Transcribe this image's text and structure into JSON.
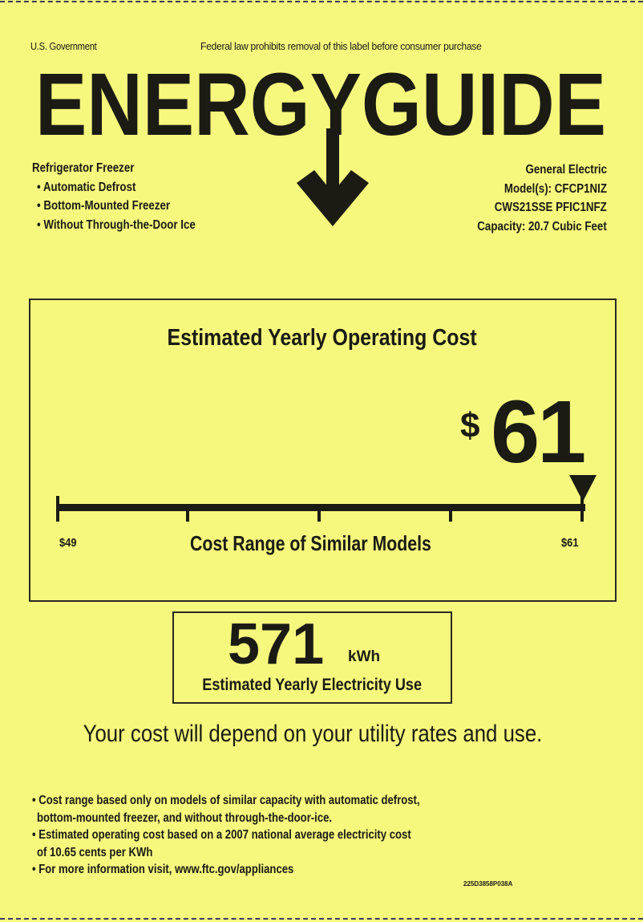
{
  "header": {
    "government": "U.S. Government",
    "notice": "Federal law prohibits removal of this label before consumer purchase",
    "title": "ENERGYGUIDE"
  },
  "appliance": {
    "type": "Refrigerator Freezer",
    "features": [
      "Automatic Defrost",
      "Bottom-Mounted Freezer",
      "Without Through-the-Door Ice"
    ]
  },
  "manufacturer": {
    "brand": "General Electric",
    "models_line1": "Model(s): CFCP1NIZ",
    "models_line2": "CWS21SSE PFIC1NFZ",
    "capacity": "Capacity: 20.7 Cubic Feet"
  },
  "cost": {
    "heading": "Estimated Yearly Operating Cost",
    "currency": "$",
    "value": "61",
    "range_min_label": "$49",
    "range_max_label": "$61",
    "range_caption": "Cost Range of Similar Models",
    "range_min": 49,
    "range_max": 61,
    "marker_value": 61
  },
  "electricity": {
    "value": "571",
    "unit": "kWh",
    "caption": "Estimated Yearly Electricity Use"
  },
  "statement": "Your cost will depend on your utility rates and use.",
  "footnotes": [
    {
      "line1": "Cost range based only on models of similar capacity with automatic defrost,",
      "line2": "bottom-mounted freezer, and without through-the-door-ice."
    },
    {
      "line1": "Estimated operating cost based on a 2007 national average electricity cost",
      "line2": "of 10.65 cents per KWh"
    },
    {
      "line1": "For more information visit, www.ftc.gov/appliances",
      "line2": ""
    }
  ],
  "label_code": "225D3858P038A",
  "colors": {
    "label_background": "#f6f77d",
    "ink": "#1b1b14"
  }
}
